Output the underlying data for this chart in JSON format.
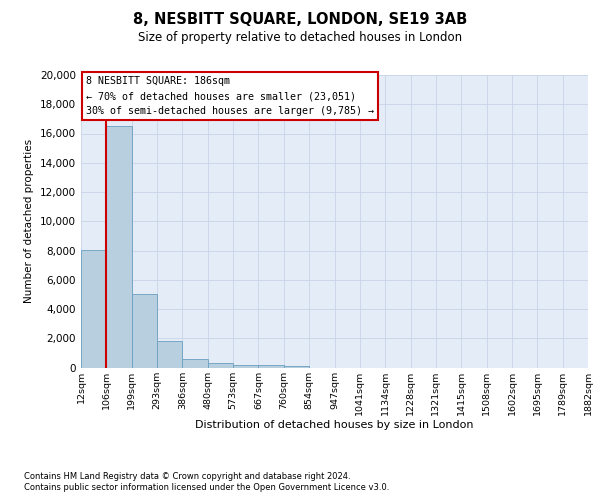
{
  "title": "8, NESBITT SQUARE, LONDON, SE19 3AB",
  "subtitle": "Size of property relative to detached houses in London",
  "xlabel": "Distribution of detached houses by size in London",
  "ylabel": "Number of detached properties",
  "bin_labels": [
    "12sqm",
    "106sqm",
    "199sqm",
    "293sqm",
    "386sqm",
    "480sqm",
    "573sqm",
    "667sqm",
    "760sqm",
    "854sqm",
    "947sqm",
    "1041sqm",
    "1134sqm",
    "1228sqm",
    "1321sqm",
    "1415sqm",
    "1508sqm",
    "1602sqm",
    "1695sqm",
    "1789sqm",
    "1882sqm"
  ],
  "bar_values": [
    8050,
    16500,
    5000,
    1800,
    550,
    300,
    200,
    150,
    100,
    0,
    0,
    0,
    0,
    0,
    0,
    0,
    0,
    0,
    0,
    0
  ],
  "bar_color": "#b8cfe0",
  "bar_edge_color": "#6a9fc0",
  "annotation_line1": "8 NESBITT SQUARE: 186sqm",
  "annotation_line2": "← 70% of detached houses are smaller (23,051)",
  "annotation_line3": "30% of semi-detached houses are larger (9,785) →",
  "annotation_box_edge_color": "#cc0000",
  "property_line_x": 1,
  "ylim": [
    0,
    20000
  ],
  "yticks": [
    0,
    2000,
    4000,
    6000,
    8000,
    10000,
    12000,
    14000,
    16000,
    18000,
    20000
  ],
  "grid_color": "#c8d4e8",
  "plot_bg_color": "#e4ecf7",
  "footer_line1": "Contains HM Land Registry data © Crown copyright and database right 2024.",
  "footer_line2": "Contains public sector information licensed under the Open Government Licence v3.0."
}
